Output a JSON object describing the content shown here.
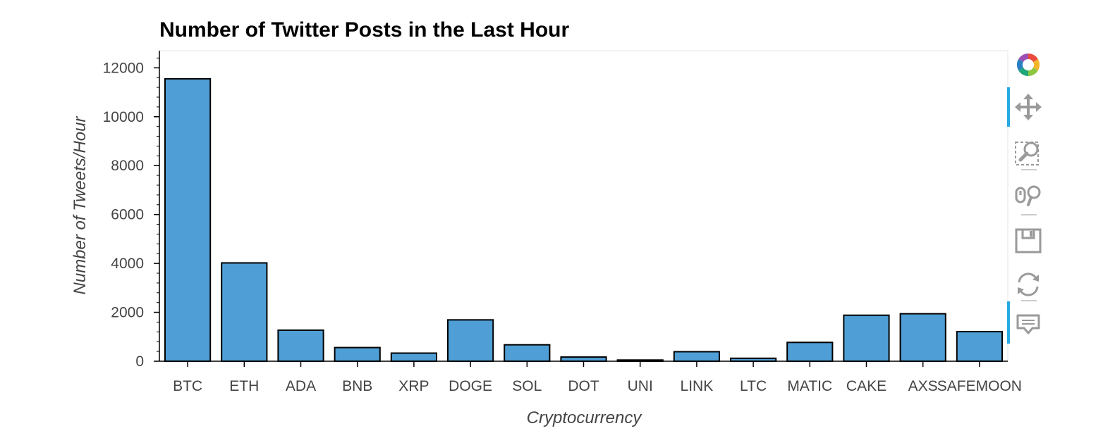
{
  "chart_data": {
    "type": "bar",
    "title": "Number of Twitter Posts in the Last Hour",
    "xlabel": "Cryptocurrency",
    "ylabel": "Number of Tweets/Hour",
    "categories": [
      "BTC",
      "ETH",
      "ADA",
      "BNB",
      "XRP",
      "DOGE",
      "SOL",
      "DOT",
      "UNI",
      "LINK",
      "LTC",
      "MATIC",
      "CAKE",
      "AXS",
      "SAFEMOON"
    ],
    "values": [
      11550,
      4020,
      1270,
      560,
      330,
      1690,
      670,
      170,
      50,
      390,
      120,
      770,
      1880,
      1940,
      1210
    ],
    "ylim": [
      0,
      12700
    ],
    "yticks": [
      0,
      2000,
      4000,
      6000,
      8000,
      10000,
      12000
    ],
    "bar_color": "#4f9fd6",
    "bar_outline": "#000000",
    "grid": false
  },
  "toolbar": {
    "tools": [
      {
        "name": "bokeh-logo-icon",
        "label": "Bokeh"
      },
      {
        "name": "pan-icon",
        "label": "Pan",
        "active": true
      },
      {
        "name": "box-zoom-icon",
        "label": "Box Zoom"
      },
      {
        "name": "wheel-zoom-icon",
        "label": "Wheel Zoom"
      },
      {
        "name": "save-icon",
        "label": "Save"
      },
      {
        "name": "reset-icon",
        "label": "Reset"
      },
      {
        "name": "hover-icon",
        "label": "Hover",
        "active": true
      }
    ],
    "accent": "#26aae1"
  }
}
